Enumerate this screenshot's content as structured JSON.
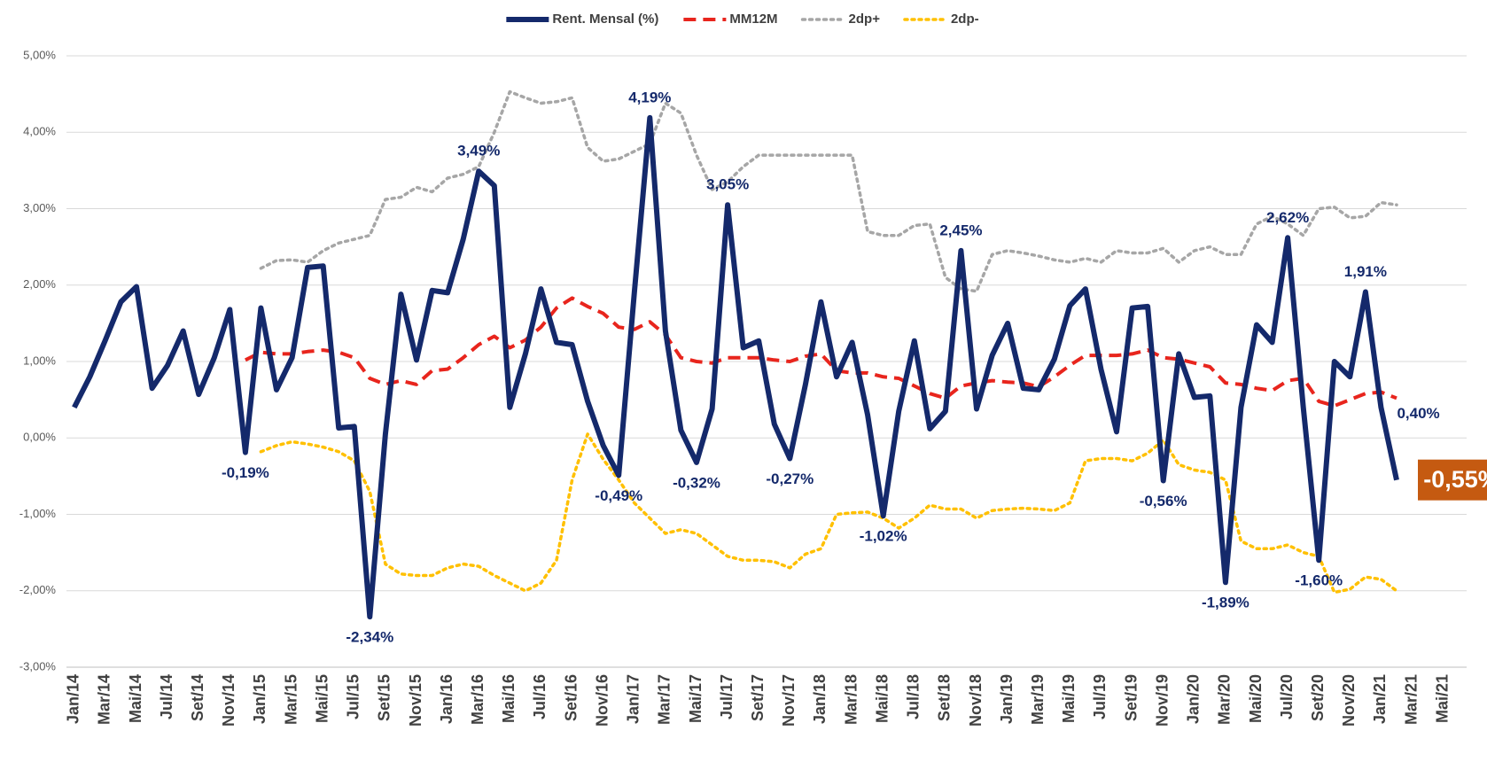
{
  "chart_data": {
    "type": "line",
    "categories": [
      "Jan/14",
      null,
      "Mar/14",
      null,
      "Mai/14",
      null,
      "Jul/14",
      null,
      "Set/14",
      null,
      "Nov/14",
      null,
      "Jan/15",
      null,
      "Mar/15",
      null,
      "Mai/15",
      null,
      "Jul/15",
      null,
      "Set/15",
      null,
      "Nov/15",
      null,
      "Jan/16",
      null,
      "Mar/16",
      null,
      "Mai/16",
      null,
      "Jul/16",
      null,
      "Set/16",
      null,
      "Nov/16",
      null,
      "Jan/17",
      null,
      "Mar/17",
      null,
      "Mai/17",
      null,
      "Jul/17",
      null,
      "Set/17",
      null,
      "Nov/17",
      null,
      "Jan/18",
      null,
      "Mar/18",
      null,
      "Mai/18",
      null,
      "Jul/18",
      null,
      "Set/18",
      null,
      "Nov/18",
      null,
      "Jan/19",
      null,
      "Mar/19",
      null,
      "Mai/19",
      null,
      "Jul/19",
      null,
      "Set/19",
      null,
      "Nov/19",
      null,
      "Jan/20",
      null,
      "Mar/20",
      null,
      "Mai/20",
      null,
      "Jul/20",
      null,
      "Set/20",
      null,
      "Nov/20",
      null,
      "Jan/21",
      null,
      "Mar/21",
      null,
      "Mai/21",
      null
    ],
    "series": [
      {
        "name": "Rent. Mensal (%)",
        "color": "#14296b",
        "style": "solid",
        "values": [
          0.4,
          0.8,
          1.28,
          1.78,
          1.98,
          0.65,
          0.95,
          1.4,
          0.57,
          1.05,
          1.68,
          -0.19,
          1.7,
          0.63,
          1.05,
          2.23,
          2.25,
          0.13,
          0.15,
          -2.34,
          0.05,
          1.88,
          1.02,
          1.93,
          1.9,
          2.6,
          3.49,
          3.3,
          0.4,
          1.1,
          1.95,
          1.25,
          1.22,
          0.48,
          -0.1,
          -0.49,
          1.9,
          4.19,
          1.4,
          0.1,
          -0.32,
          0.38,
          3.05,
          1.18,
          1.27,
          0.18,
          -0.27,
          0.7,
          1.78,
          0.8,
          1.25,
          0.3,
          -1.02,
          0.35,
          1.27,
          0.12,
          0.35,
          2.45,
          0.38,
          1.08,
          1.5,
          0.65,
          0.63,
          1.03,
          1.73,
          1.95,
          0.9,
          0.08,
          1.7,
          1.72,
          -0.56,
          1.1,
          0.53,
          0.55,
          -1.89,
          0.4,
          1.48,
          1.25,
          2.62,
          0.4,
          -1.6,
          1.0,
          0.8,
          1.91,
          0.4,
          -0.55,
          null,
          null,
          null,
          null
        ],
        "value_labels": [
          null,
          null,
          null,
          null,
          null,
          null,
          null,
          null,
          null,
          null,
          null,
          "-0,19%",
          null,
          null,
          null,
          null,
          null,
          null,
          null,
          "-2,34%",
          null,
          null,
          null,
          null,
          null,
          null,
          "3,49%",
          null,
          null,
          null,
          null,
          null,
          null,
          null,
          null,
          "-0,49%",
          null,
          "4,19%",
          null,
          null,
          "-0,32%",
          null,
          "3,05%",
          null,
          null,
          null,
          "-0,27%",
          null,
          null,
          null,
          null,
          null,
          "-1,02%",
          null,
          null,
          null,
          null,
          "2,45%",
          null,
          null,
          null,
          null,
          null,
          null,
          null,
          null,
          null,
          null,
          null,
          null,
          "-0,56%",
          null,
          null,
          null,
          "-1,89%",
          null,
          null,
          null,
          "2,62%",
          null,
          "-1,60%",
          null,
          null,
          "1,91%",
          "0,40%",
          "-0,55%",
          null,
          null,
          null,
          null
        ]
      },
      {
        "name": "MM12M",
        "color": "#e8251d",
        "style": "dashed",
        "values": [
          null,
          null,
          null,
          null,
          null,
          null,
          null,
          null,
          null,
          null,
          null,
          1.02,
          1.12,
          1.1,
          1.1,
          1.13,
          1.15,
          1.12,
          1.05,
          0.78,
          0.7,
          0.75,
          0.7,
          0.88,
          0.9,
          1.05,
          1.22,
          1.33,
          1.18,
          1.28,
          1.45,
          1.7,
          1.83,
          1.72,
          1.63,
          1.45,
          1.42,
          1.52,
          1.35,
          1.05,
          1.0,
          0.98,
          1.05,
          1.05,
          1.05,
          1.02,
          1.0,
          1.07,
          1.1,
          0.88,
          0.85,
          0.85,
          0.8,
          0.78,
          0.68,
          0.58,
          0.52,
          0.68,
          0.72,
          0.75,
          0.73,
          0.72,
          0.67,
          0.8,
          0.95,
          1.08,
          1.08,
          1.08,
          1.1,
          1.15,
          1.05,
          1.03,
          0.98,
          0.93,
          0.72,
          0.7,
          0.65,
          0.62,
          0.75,
          0.78,
          0.48,
          0.42,
          0.5,
          0.58,
          0.6,
          0.52,
          null,
          null,
          null,
          null
        ]
      },
      {
        "name": "2dp+",
        "color": "#a6a6a6",
        "style": "dotted",
        "values": [
          null,
          null,
          null,
          null,
          null,
          null,
          null,
          null,
          null,
          null,
          null,
          null,
          2.22,
          2.32,
          2.33,
          2.3,
          2.45,
          2.55,
          2.6,
          2.65,
          3.12,
          3.15,
          3.28,
          3.22,
          3.4,
          3.45,
          3.55,
          4.0,
          4.53,
          4.45,
          4.38,
          4.4,
          4.45,
          3.8,
          3.62,
          3.65,
          3.75,
          3.85,
          4.38,
          4.25,
          3.7,
          3.25,
          3.35,
          3.55,
          3.7,
          3.7,
          3.7,
          3.7,
          3.7,
          3.7,
          3.7,
          2.7,
          2.65,
          2.65,
          2.78,
          2.8,
          2.1,
          1.95,
          1.92,
          2.4,
          2.45,
          2.42,
          2.38,
          2.33,
          2.3,
          2.35,
          2.3,
          2.45,
          2.42,
          2.42,
          2.48,
          2.3,
          2.45,
          2.5,
          2.4,
          2.4,
          2.8,
          2.9,
          2.8,
          2.65,
          3.0,
          3.02,
          2.88,
          2.9,
          3.08,
          3.05,
          null,
          null,
          null,
          null
        ]
      },
      {
        "name": "2dp-",
        "color": "#ffc000",
        "style": "dotted",
        "values": [
          null,
          null,
          null,
          null,
          null,
          null,
          null,
          null,
          null,
          null,
          null,
          null,
          -0.18,
          -0.1,
          -0.05,
          -0.08,
          -0.12,
          -0.18,
          -0.3,
          -0.7,
          -1.65,
          -1.78,
          -1.8,
          -1.8,
          -1.7,
          -1.65,
          -1.68,
          -1.8,
          -1.9,
          -2.0,
          -1.9,
          -1.6,
          -0.55,
          0.05,
          -0.28,
          -0.55,
          -0.85,
          -1.05,
          -1.25,
          -1.2,
          -1.25,
          -1.4,
          -1.55,
          -1.6,
          -1.6,
          -1.62,
          -1.7,
          -1.52,
          -1.45,
          -1.0,
          -0.98,
          -0.97,
          -1.05,
          -1.18,
          -1.05,
          -0.88,
          -0.93,
          -0.93,
          -1.05,
          -0.95,
          -0.93,
          -0.92,
          -0.93,
          -0.95,
          -0.85,
          -0.3,
          -0.27,
          -0.27,
          -0.3,
          -0.2,
          -0.03,
          -0.35,
          -0.42,
          -0.45,
          -0.55,
          -1.35,
          -1.45,
          -1.45,
          -1.4,
          -1.5,
          -1.55,
          -2.02,
          -1.98,
          -1.82,
          -1.85,
          -2.0,
          null,
          null,
          null,
          null
        ]
      }
    ],
    "ylim": [
      -3,
      5
    ],
    "yticks": [
      {
        "value": -3,
        "label": "-3,00%"
      },
      {
        "value": -2,
        "label": "-2,00%"
      },
      {
        "value": -1,
        "label": "-1,00%"
      },
      {
        "value": 0,
        "label": "0,00%"
      },
      {
        "value": 1,
        "label": "1,00%"
      },
      {
        "value": 2,
        "label": "2,00%"
      },
      {
        "value": 3,
        "label": "3,00%"
      },
      {
        "value": 4,
        "label": "4,00%"
      },
      {
        "value": 5,
        "label": "5,00%"
      }
    ],
    "grid": true,
    "legend": "top"
  }
}
